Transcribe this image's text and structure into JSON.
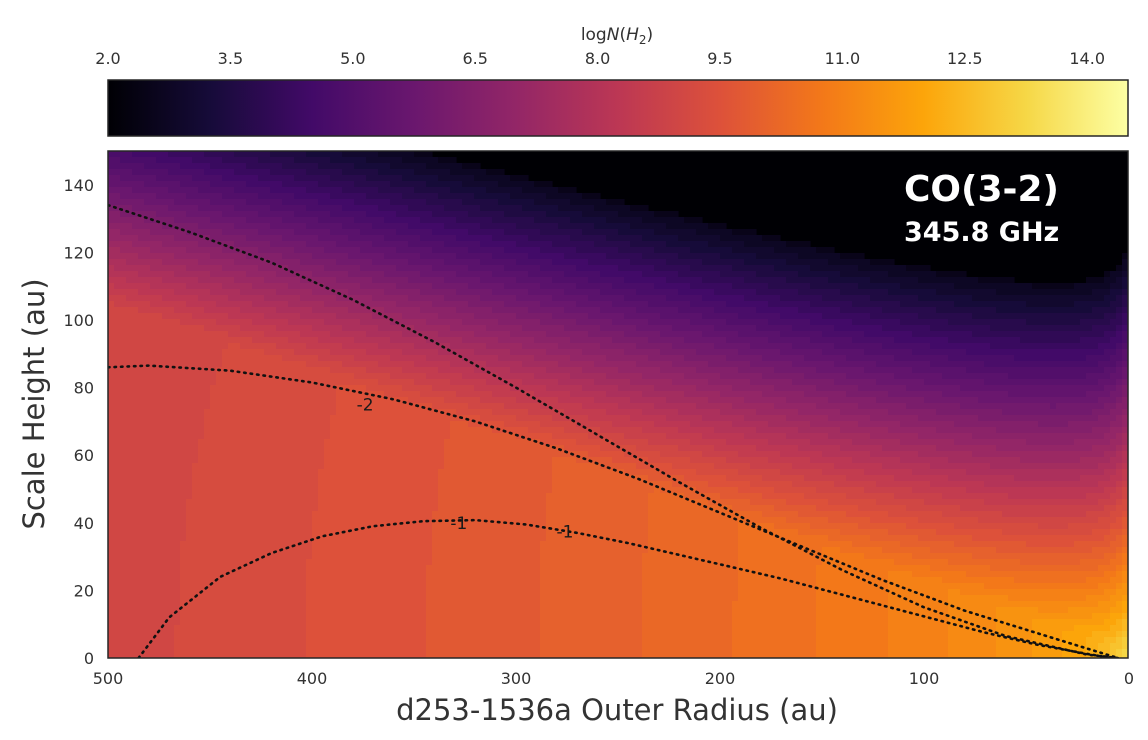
{
  "chart_data": {
    "type": "heatmap",
    "title": "",
    "colorbar": {
      "label": "logN(H2)",
      "label_parts": {
        "prefix": "log",
        "variable": "N",
        "open": "(",
        "symbol": "H",
        "subscript": "2",
        "close": ")"
      },
      "ticks": [
        "2.0",
        "3.5",
        "5.0",
        "6.5",
        "8.0",
        "9.5",
        "11.0",
        "12.5",
        "14.0"
      ],
      "range": [
        2.0,
        14.5
      ],
      "colormap": "inferno",
      "location": "top"
    },
    "xlabel": "d253-1536a Outer Radius (au)",
    "ylabel": "Scale Height (au)",
    "xlim": [
      500,
      0
    ],
    "ylim": [
      0,
      150
    ],
    "xticks": [
      "500",
      "400",
      "300",
      "200",
      "100",
      "0"
    ],
    "yticks": [
      "0",
      "20",
      "40",
      "60",
      "80",
      "100",
      "120",
      "140"
    ],
    "grid": false,
    "annotation": {
      "line1": "CO(3-2)",
      "line2": "345.8 GHz",
      "placement": "top-right"
    },
    "background_color": "#000004",
    "contours": [
      {
        "level": "-2",
        "style": "dotted",
        "x": [
          500,
          480,
          440,
          400,
          360,
          320,
          280,
          240,
          200,
          160,
          120,
          80,
          40,
          5
        ],
        "y": [
          86,
          86.5,
          85,
          81.5,
          76.5,
          70,
          62,
          53,
          43,
          33,
          23,
          14,
          6.5,
          0
        ]
      },
      {
        "level": "-1",
        "style": "dotted",
        "x": [
          485,
          470,
          445,
          420,
          395,
          370,
          345,
          320,
          295,
          270,
          245,
          220,
          195,
          170,
          145,
          120,
          95,
          70,
          45,
          20,
          8
        ],
        "y": [
          0,
          12,
          24,
          31,
          36,
          39,
          40.5,
          40.8,
          39.5,
          37,
          34,
          30.5,
          27,
          23.5,
          19.5,
          15.5,
          11.5,
          7.5,
          4,
          1.2,
          0
        ]
      },
      {
        "level": "-3",
        "style": "dotted",
        "x": [
          500,
          460,
          420,
          380,
          340,
          300,
          260,
          220,
          180,
          140,
          100,
          60,
          20,
          5
        ],
        "y": [
          134,
          126,
          117,
          106,
          93.5,
          80,
          66,
          52,
          38.5,
          26,
          15,
          6.5,
          1,
          0
        ]
      }
    ],
    "contour_labels": [
      {
        "text": "-2",
        "x": 374,
        "y": 75
      },
      {
        "text": "-1",
        "x": 328,
        "y": 40
      },
      {
        "text": "-1",
        "x": 276,
        "y": 37.5
      }
    ]
  }
}
